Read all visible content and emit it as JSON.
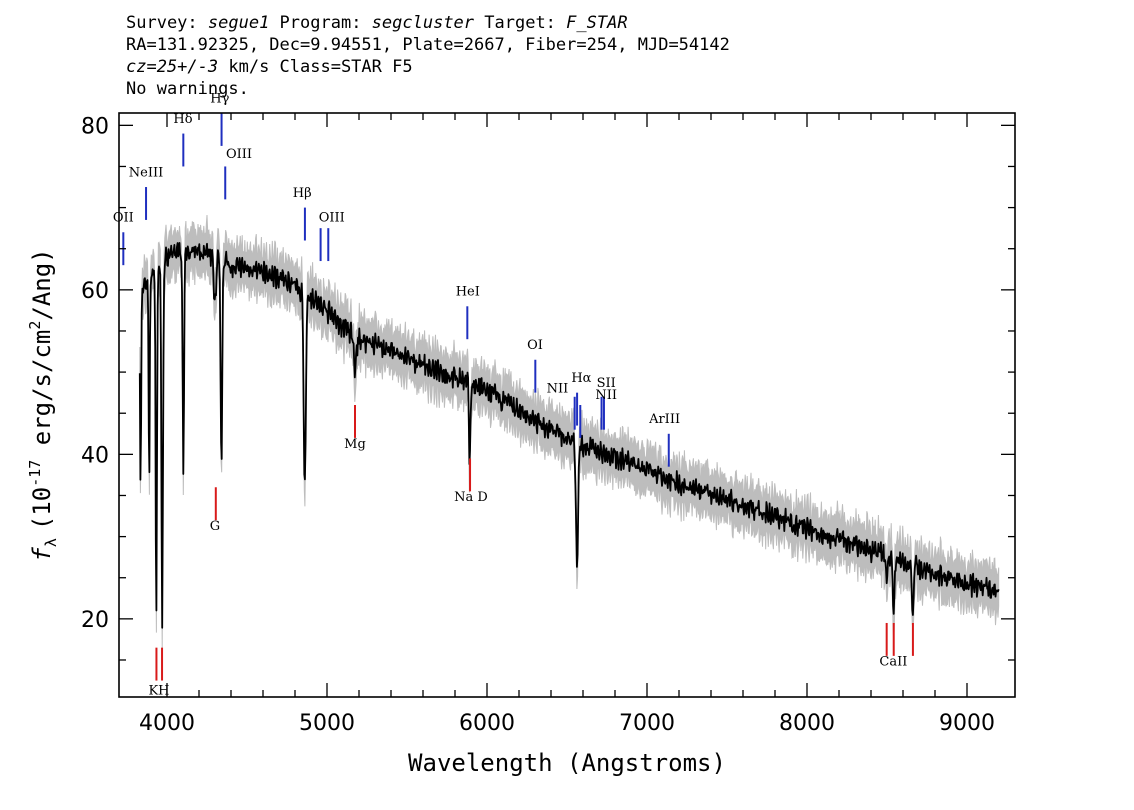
{
  "header": {
    "line1": {
      "survey_prefix": "Survey: ",
      "survey": "segue1",
      "program_prefix": " Program: ",
      "program": "segcluster",
      "target_prefix": " Target: ",
      "target": "F_STAR"
    },
    "line2": "RA=131.92325, Dec=9.94551, Plate=2667, Fiber=254, MJD=54142",
    "line3": {
      "cz": "cz=25+/-3",
      "rest": " km/s Class=STAR F5"
    },
    "line4": "No warnings."
  },
  "chart_data": {
    "type": "line",
    "xlabel": "Wavelength (Angstroms)",
    "ylabel": "f_λ (10^-17 erg/s/cm^2/Ang)",
    "ylabel_parts": {
      "sym": "f",
      "sub": "λ",
      "a": "(10",
      "sup1": "-17",
      "b": " erg/s/cm",
      "sup2": "2",
      "c": "/Ang)"
    },
    "xlim": [
      3700,
      9300
    ],
    "ylim": [
      10.5,
      81.5
    ],
    "x_ticks": [
      4000,
      5000,
      6000,
      7000,
      8000,
      9000
    ],
    "y_ticks": [
      20,
      40,
      60,
      80
    ],
    "colors": {
      "spectrum": "#000000",
      "error": "#bdbdbd",
      "emission": "#1f2fbf",
      "absorption": "#d81a1a"
    },
    "continuum": [
      [
        3830,
        59
      ],
      [
        3900,
        62
      ],
      [
        4000,
        64
      ],
      [
        4100,
        65
      ],
      [
        4200,
        64.5
      ],
      [
        4300,
        64
      ],
      [
        4400,
        63
      ],
      [
        4500,
        62.5
      ],
      [
        4600,
        62
      ],
      [
        4700,
        61.5
      ],
      [
        4800,
        60.5
      ],
      [
        4900,
        59
      ],
      [
        5000,
        57.5
      ],
      [
        5100,
        55.5
      ],
      [
        5200,
        54
      ],
      [
        5300,
        53.5
      ],
      [
        5400,
        52.5
      ],
      [
        5500,
        51.5
      ],
      [
        5600,
        51
      ],
      [
        5700,
        50
      ],
      [
        5800,
        49.3
      ],
      [
        5900,
        48.5
      ],
      [
        6000,
        47.7
      ],
      [
        6100,
        46.5
      ],
      [
        6200,
        45.3
      ],
      [
        6300,
        44
      ],
      [
        6400,
        43
      ],
      [
        6500,
        41.8
      ],
      [
        6600,
        41
      ],
      [
        6700,
        40.5
      ],
      [
        6800,
        39.7
      ],
      [
        6900,
        39
      ],
      [
        7000,
        38
      ],
      [
        7100,
        37.3
      ],
      [
        7200,
        36.5
      ],
      [
        7300,
        35.8
      ],
      [
        7400,
        35.2
      ],
      [
        7500,
        34.5
      ],
      [
        7600,
        33.8
      ],
      [
        7700,
        33.2
      ],
      [
        7800,
        32.5
      ],
      [
        7900,
        31.7
      ],
      [
        8000,
        31
      ],
      [
        8100,
        30.2
      ],
      [
        8200,
        29.6
      ],
      [
        8300,
        29
      ],
      [
        8400,
        28.3
      ],
      [
        8500,
        27.6
      ],
      [
        8600,
        26.8
      ],
      [
        8700,
        26.2
      ],
      [
        8800,
        25.5
      ],
      [
        8900,
        25
      ],
      [
        9000,
        24.3
      ],
      [
        9100,
        23.8
      ],
      [
        9200,
        23.3
      ]
    ],
    "absorption_features": [
      {
        "center": 3835,
        "depth": 22,
        "width": 5
      },
      {
        "center": 3889,
        "depth": 25,
        "width": 5
      },
      {
        "center": 3933,
        "depth": 42,
        "width": 6
      },
      {
        "center": 3970,
        "depth": 43,
        "width": 7
      },
      {
        "center": 4102,
        "depth": 28,
        "width": 6
      },
      {
        "center": 4300,
        "depth": 6,
        "width": 10
      },
      {
        "center": 4340,
        "depth": 25,
        "width": 7
      },
      {
        "center": 4861,
        "depth": 24,
        "width": 9
      },
      {
        "center": 5175,
        "depth": 4,
        "width": 12
      },
      {
        "center": 5892,
        "depth": 10,
        "width": 6
      },
      {
        "center": 6563,
        "depth": 15,
        "width": 9
      },
      {
        "center": 8498,
        "depth": 4,
        "width": 6
      },
      {
        "center": 8542,
        "depth": 6,
        "width": 7
      },
      {
        "center": 8662,
        "depth": 6,
        "width": 7
      }
    ],
    "emission_lines": [
      {
        "label": "OII",
        "x": 3727,
        "y1": 63,
        "y2": 67,
        "lx": 3727,
        "ly": 68.3
      },
      {
        "label": "NeIII",
        "x": 3869,
        "y1": 68.5,
        "y2": 72.5,
        "lx": 3869,
        "ly": 73.8
      },
      {
        "label": "Hδ",
        "x": 4102,
        "y1": 75,
        "y2": 79,
        "lx": 4100,
        "ly": 80.3
      },
      {
        "label": "Hγ",
        "x": 4341,
        "y1": 77.5,
        "y2": 81.5,
        "lx": 4330,
        "ly": 82.8
      },
      {
        "label": "OIII",
        "x": 4364,
        "y1": 71,
        "y2": 75,
        "lx": 4450,
        "ly": 76
      },
      {
        "label": "Hβ",
        "x": 4862,
        "y1": 66,
        "y2": 70,
        "lx": 4845,
        "ly": 71.3
      },
      {
        "label": "OIII",
        "x": 4960,
        "y1": 63.5,
        "y2": 67.5,
        "lx": 5030,
        "ly": 68.3
      },
      {
        "label": "OIII",
        "x": 5008,
        "y1": 63.5,
        "y2": 67.5,
        "lx": null,
        "ly": null
      },
      {
        "label": "HeI",
        "x": 5877,
        "y1": 54,
        "y2": 58,
        "lx": 5880,
        "ly": 59.3
      },
      {
        "label": "OI",
        "x": 6302,
        "y1": 47.5,
        "y2": 51.5,
        "lx": 6300,
        "ly": 52.8
      },
      {
        "label": "NII",
        "x": 6548,
        "y1": 43,
        "y2": 47,
        "lx": 6440,
        "ly": 47.5
      },
      {
        "label": "Hα",
        "x": 6563,
        "y1": 43.5,
        "y2": 47.5,
        "lx": 6590,
        "ly": 48.8
      },
      {
        "label": "NII",
        "x": 6583,
        "y1": 42,
        "y2": 46,
        "lx": null,
        "ly": null
      },
      {
        "label": "SII",
        "x": 6716,
        "y1": 43,
        "y2": 47,
        "lx": 6745,
        "ly": 48.2
      },
      {
        "label": "NII",
        "x": 6731,
        "y1": 43,
        "y2": 47,
        "lx": 6745,
        "ly": 46.7
      },
      {
        "label": "ArIII",
        "x": 7136,
        "y1": 38.5,
        "y2": 42.5,
        "lx": 7110,
        "ly": 43.8
      }
    ],
    "absorption_lines": [
      {
        "label": "KH",
        "x": 3934,
        "y1": 12.5,
        "y2": 16.5,
        "lx": null,
        "ly": null
      },
      {
        "label": "KH",
        "x": 3969,
        "y1": 12.5,
        "y2": 16.5,
        "lx": 3950,
        "ly": 10.8
      },
      {
        "label": "G",
        "x": 4305,
        "y1": 32,
        "y2": 36,
        "lx": 4300,
        "ly": 30.8
      },
      {
        "label": "Mg",
        "x": 5175,
        "y1": 42,
        "y2": 46,
        "lx": 5175,
        "ly": 40.8
      },
      {
        "label": "Na D",
        "x": 5894,
        "y1": 35.5,
        "y2": 39.5,
        "lx": 5900,
        "ly": 34.3
      },
      {
        "label": "CaII",
        "x": 8498,
        "y1": 15.5,
        "y2": 19.5,
        "lx": 8540,
        "ly": 14.3
      },
      {
        "label": "CaII",
        "x": 8542,
        "y1": 15.5,
        "y2": 19.5,
        "lx": null,
        "ly": null
      },
      {
        "label": "CaII",
        "x": 8662,
        "y1": 15.5,
        "y2": 19.5,
        "lx": null,
        "ly": null
      }
    ]
  }
}
